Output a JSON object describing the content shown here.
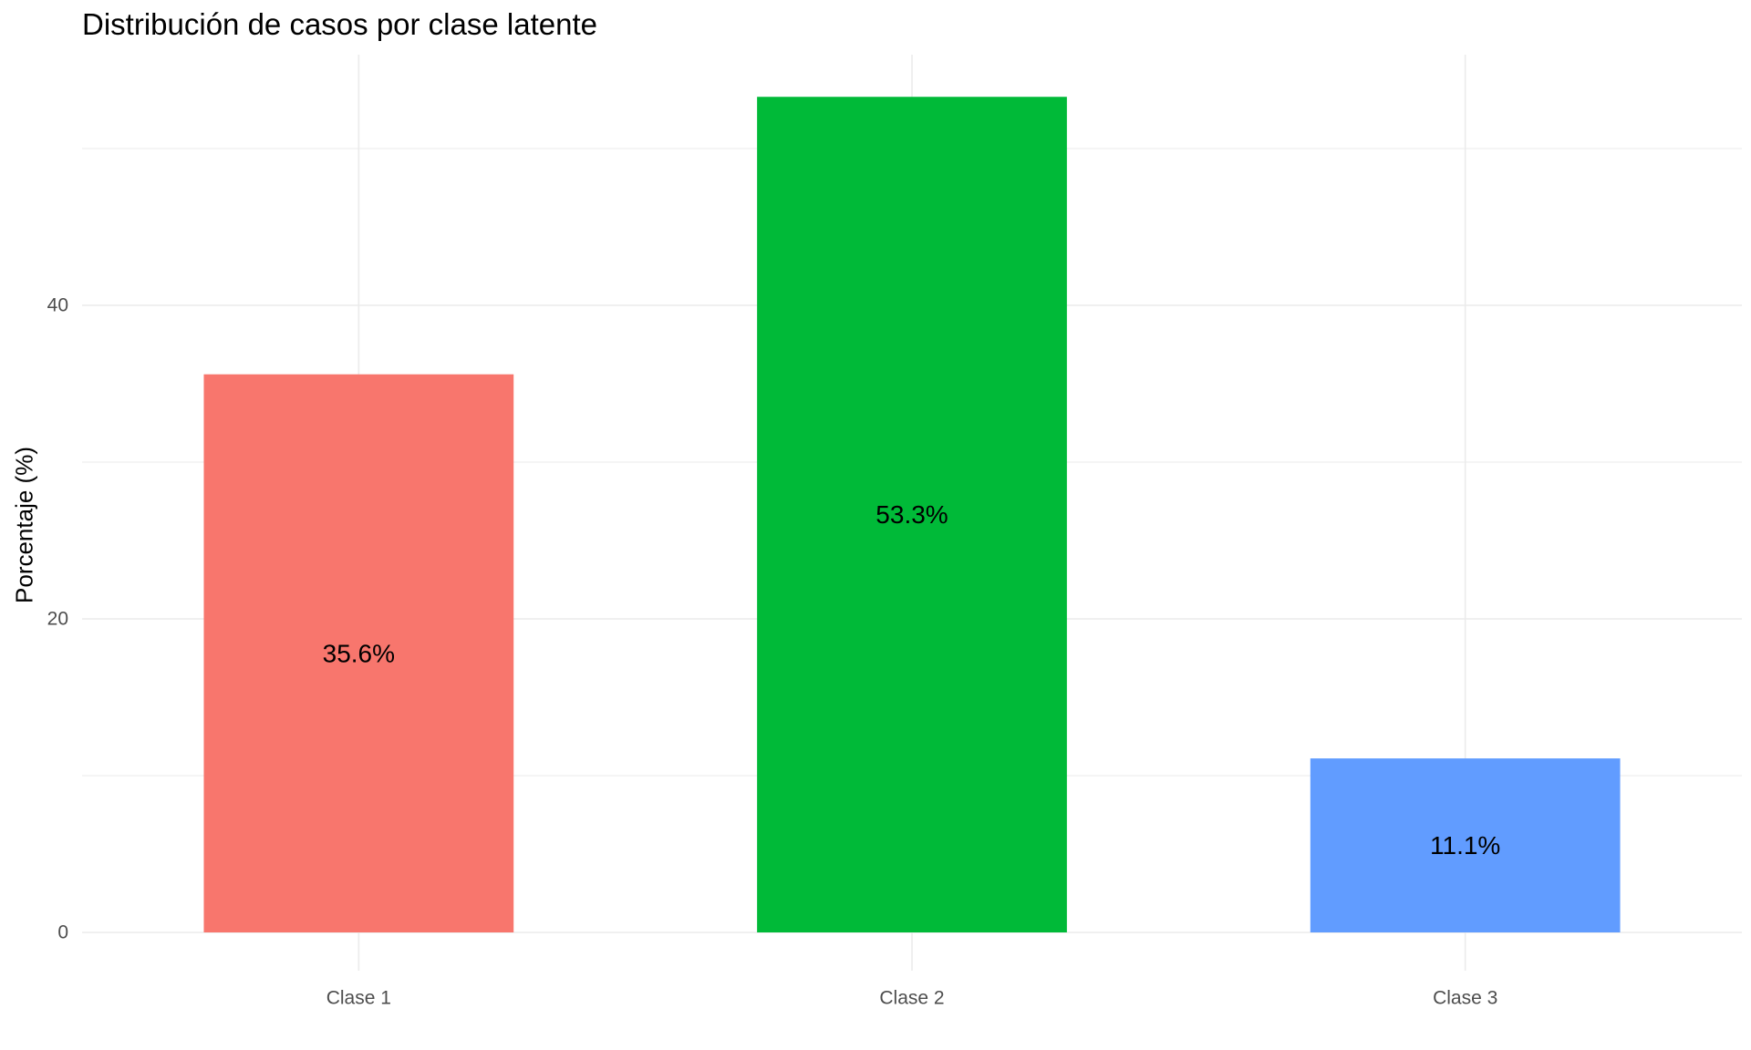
{
  "chart_data": {
    "type": "bar",
    "title": "Distribución de casos por clase latente",
    "xlabel": "",
    "ylabel": "Porcentaje (%)",
    "categories": [
      "Clase 1",
      "Clase 2",
      "Clase 3"
    ],
    "values": [
      35.6,
      53.3,
      11.1
    ],
    "value_labels": [
      "35.6%",
      "53.3%",
      "11.1%"
    ],
    "colors": [
      "#F8766D",
      "#00BA38",
      "#619CFF"
    ],
    "y_ticks": [
      0,
      20,
      40
    ],
    "ylim": [
      0,
      55.9
    ],
    "grid": true,
    "legend": "none"
  }
}
